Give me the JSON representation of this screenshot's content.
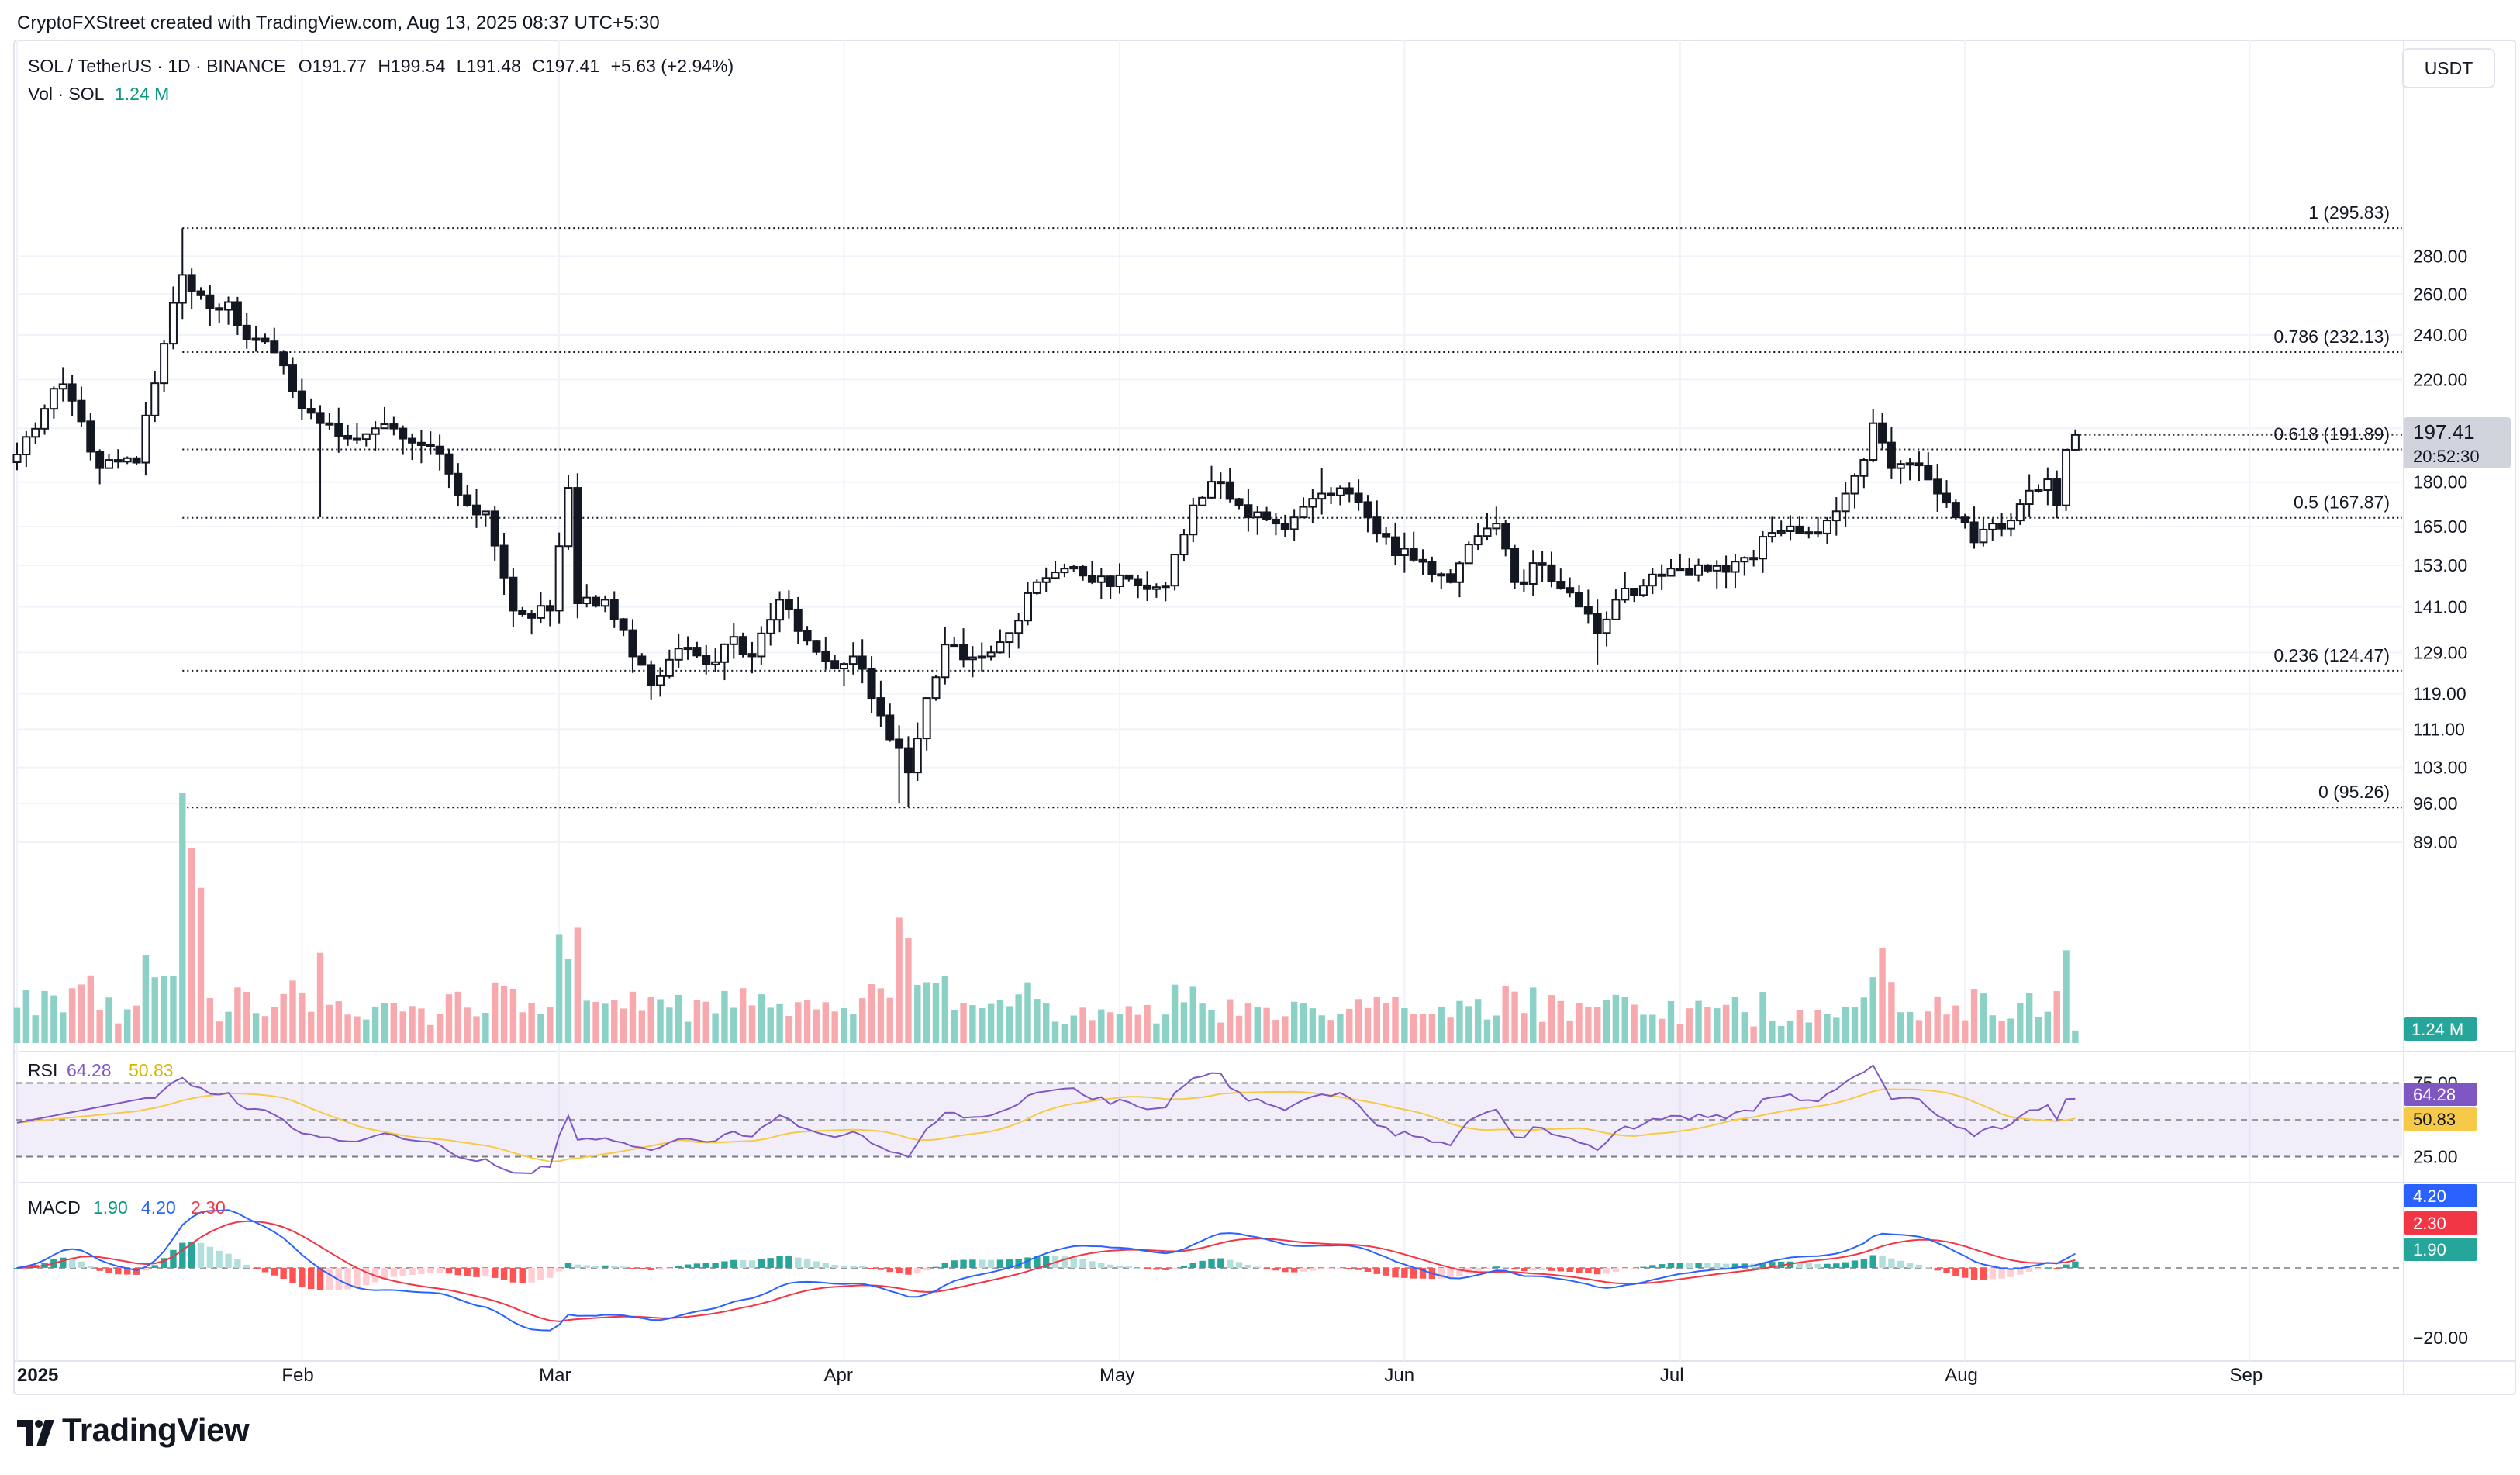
{
  "attribution": "CryptoFXStreet created with TradingView.com, Aug 13, 2025 08:37 UTC+5:30",
  "symbol": {
    "name": "SOL / TetherUS · 1D · BINANCE",
    "o": "O191.77",
    "h": "H199.54",
    "l": "L191.48",
    "c": "C197.41",
    "change": "+5.63 (+2.94%)"
  },
  "vol_legend": {
    "label": "Vol · SOL",
    "value": "1.24 M"
  },
  "currency_button": "USDT",
  "brand": "TradingView",
  "price_badge": {
    "price": "197.41",
    "countdown": "20:52:30"
  },
  "colors": {
    "up": "#089981",
    "down": "#f23645",
    "rsi": "#7e57c2",
    "rsi_ma": "#f7c948",
    "macd": "#2962ff",
    "signal": "#f23645",
    "hist_up": "#26a69a",
    "hist_up_light": "#b2dfdb",
    "hist_down": "#ff5252",
    "hist_down_light": "#ffcdd2"
  },
  "chart_data": [
    {
      "type": "candlestick",
      "pane": "price",
      "price_axis_labels": [
        "280.00",
        "260.00",
        "240.00",
        "220.00",
        "200.00",
        "180.00",
        "165.00",
        "153.00",
        "141.00",
        "129.00",
        "119.00",
        "111.00",
        "103.00",
        "96.00",
        "89.00"
      ],
      "x_axis_labels": [
        "2025",
        "Feb",
        "Mar",
        "Apr",
        "May",
        "Jun",
        "Jul",
        "Aug",
        "Sep"
      ],
      "fib_levels": [
        {
          "label": "1 (295.83)",
          "value": 295.83
        },
        {
          "label": "0.786 (232.13)",
          "value": 232.13
        },
        {
          "label": "0.618 (191.89)",
          "value": 191.89
        },
        {
          "label": "0.5 (167.87)",
          "value": 167.87
        },
        {
          "label": "0.236 (124.47)",
          "value": 124.47
        },
        {
          "label": "0 (95.26)",
          "value": 95.26
        }
      ],
      "anchors": [
        [
          "2025-01-01",
          190
        ],
        [
          "2025-01-06",
          218
        ],
        [
          "2025-01-10",
          185
        ],
        [
          "2025-01-14",
          187
        ],
        [
          "2025-01-17",
          236
        ],
        [
          "2025-01-19",
          270
        ],
        [
          "2025-01-22",
          253
        ],
        [
          "2025-01-24",
          256
        ],
        [
          "2025-01-26",
          238
        ],
        [
          "2025-01-29",
          232
        ],
        [
          "2025-01-31",
          215
        ],
        [
          "2025-02-03",
          202
        ],
        [
          "2025-02-06",
          196
        ],
        [
          "2025-02-09",
          200
        ],
        [
          "2025-02-12",
          196
        ],
        [
          "2025-02-15",
          193
        ],
        [
          "2025-02-17",
          183
        ],
        [
          "2025-02-19",
          172
        ],
        [
          "2025-02-21",
          170
        ],
        [
          "2025-02-24",
          140
        ],
        [
          "2025-02-26",
          138
        ],
        [
          "2025-02-28",
          140
        ],
        [
          "2025-03-02",
          178
        ],
        [
          "2025-03-03",
          142
        ],
        [
          "2025-03-06",
          143
        ],
        [
          "2025-03-09",
          128
        ],
        [
          "2025-03-11",
          121
        ],
        [
          "2025-03-14",
          130
        ],
        [
          "2025-03-17",
          126
        ],
        [
          "2025-03-20",
          133
        ],
        [
          "2025-03-22",
          128
        ],
        [
          "2025-03-25",
          143
        ],
        [
          "2025-03-28",
          132
        ],
        [
          "2025-03-31",
          125
        ],
        [
          "2025-04-02",
          128
        ],
        [
          "2025-04-04",
          118
        ],
        [
          "2025-04-07",
          107
        ],
        [
          "2025-04-08",
          102
        ],
        [
          "2025-04-10",
          118
        ],
        [
          "2025-04-12",
          131
        ],
        [
          "2025-04-16",
          128
        ],
        [
          "2025-04-19",
          134
        ],
        [
          "2025-04-22",
          148
        ],
        [
          "2025-04-25",
          152
        ],
        [
          "2025-04-28",
          148
        ],
        [
          "2025-05-01",
          150
        ],
        [
          "2025-05-04",
          146
        ],
        [
          "2025-05-06",
          147
        ],
        [
          "2025-05-09",
          172
        ],
        [
          "2025-05-12",
          180
        ],
        [
          "2025-05-15",
          168
        ],
        [
          "2025-05-18",
          166
        ],
        [
          "2025-05-20",
          168
        ],
        [
          "2025-05-23",
          176
        ],
        [
          "2025-05-26",
          176
        ],
        [
          "2025-05-28",
          168
        ],
        [
          "2025-05-31",
          156
        ],
        [
          "2025-06-03",
          154
        ],
        [
          "2025-06-06",
          148
        ],
        [
          "2025-06-09",
          162
        ],
        [
          "2025-06-11",
          166
        ],
        [
          "2025-06-13",
          148
        ],
        [
          "2025-06-16",
          153
        ],
        [
          "2025-06-19",
          145
        ],
        [
          "2025-06-22",
          134
        ],
        [
          "2025-06-24",
          143
        ],
        [
          "2025-06-27",
          147
        ],
        [
          "2025-06-30",
          152
        ],
        [
          "2025-07-03",
          153
        ],
        [
          "2025-07-06",
          151
        ],
        [
          "2025-07-09",
          155
        ],
        [
          "2025-07-11",
          163
        ],
        [
          "2025-07-14",
          163
        ],
        [
          "2025-07-17",
          167
        ],
        [
          "2025-07-19",
          176
        ],
        [
          "2025-07-21",
          188
        ],
        [
          "2025-07-22",
          202
        ],
        [
          "2025-07-24",
          185
        ],
        [
          "2025-07-27",
          186
        ],
        [
          "2025-07-29",
          176
        ],
        [
          "2025-07-31",
          168
        ],
        [
          "2025-08-02",
          160
        ],
        [
          "2025-08-04",
          166
        ],
        [
          "2025-08-06",
          167
        ],
        [
          "2025-08-08",
          177
        ],
        [
          "2025-08-10",
          181
        ],
        [
          "2025-08-11",
          172
        ],
        [
          "2025-08-12",
          191.77
        ],
        [
          "2025-08-13",
          197.41
        ]
      ],
      "last_bar": {
        "open": 191.77,
        "high": 199.54,
        "low": 191.48,
        "close": 197.41
      }
    },
    {
      "type": "bar",
      "pane": "volume",
      "series": [
        {
          "name": "Vol · SOL",
          "last": 1.24
        }
      ],
      "spikes": [
        [
          "2025-01-19",
          1.0
        ],
        [
          "2025-01-20",
          0.78
        ],
        [
          "2025-01-21",
          0.62
        ],
        [
          "2025-04-07",
          0.5
        ],
        [
          "2025-04-08",
          0.42
        ],
        [
          "2025-02-03",
          0.36
        ],
        [
          "2025-03-03",
          0.46
        ],
        [
          "2025-07-23",
          0.38
        ]
      ]
    },
    {
      "type": "line",
      "pane": "rsi",
      "legend": "RSI",
      "series": [
        {
          "name": "RSI",
          "last": 64.28
        },
        {
          "name": "RSI MA",
          "last": 50.83
        }
      ],
      "levels": [
        75,
        25
      ]
    },
    {
      "type": "bar",
      "pane": "macd",
      "legend": "MACD",
      "series": [
        {
          "name": "MACD",
          "last": 4.2
        },
        {
          "name": "Signal",
          "last": 2.3
        },
        {
          "name": "Histogram",
          "last": 1.9
        }
      ],
      "axis_label": "−20.00"
    }
  ]
}
